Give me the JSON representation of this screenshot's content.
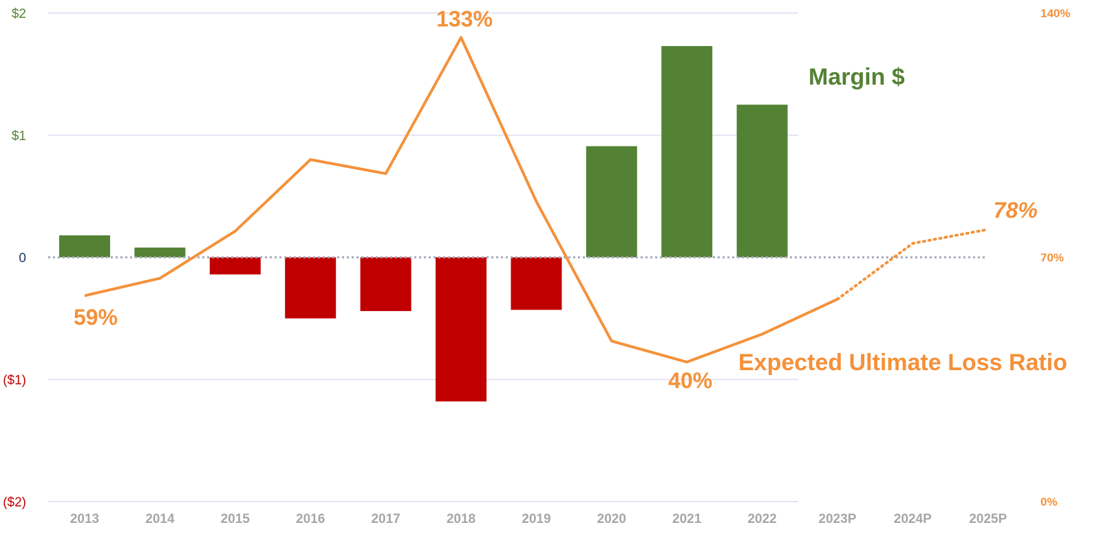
{
  "chart_data": {
    "type": "bar",
    "categories": [
      "2013",
      "2014",
      "2015",
      "2016",
      "2017",
      "2018",
      "2019",
      "2020",
      "2021",
      "2022",
      "2023P",
      "2024P",
      "2025P"
    ],
    "series": [
      {
        "name": "Margin $",
        "type": "bar",
        "axis": "left",
        "values": [
          0.18,
          0.08,
          -0.14,
          -0.5,
          -0.44,
          -1.18,
          -0.43,
          0.91,
          1.73,
          1.25,
          null,
          null,
          null
        ],
        "positive_color": "#548235",
        "negative_color": "#c00000"
      },
      {
        "name": "Expected Ultimate Loss Ratio",
        "type": "line",
        "axis": "right",
        "values": [
          59,
          64,
          77.5,
          98,
          94,
          133,
          86,
          46,
          40,
          48,
          58,
          74,
          78
        ],
        "projected_from_index": 10,
        "color": "#f4913a"
      }
    ],
    "left_axis": {
      "ylim": [
        -2,
        2
      ],
      "ticks": [
        {
          "value": 2,
          "label": "$2",
          "color": "#548235"
        },
        {
          "value": 1,
          "label": "$1",
          "color": "#548235"
        },
        {
          "value": 0,
          "label": "0",
          "color": "#1f3864"
        },
        {
          "value": -1,
          "label": "($1)",
          "color": "#c00000"
        },
        {
          "value": -2,
          "label": "($2)",
          "color": "#c00000"
        }
      ]
    },
    "right_axis": {
      "ylim": [
        0,
        140
      ],
      "ticks": [
        {
          "value": 140,
          "label": "140%"
        },
        {
          "value": 70,
          "label": "70%"
        },
        {
          "value": 0,
          "label": "0%"
        }
      ],
      "color": "#f4913a"
    },
    "annotations": [
      {
        "label": "133%",
        "index": 5,
        "value": 133
      },
      {
        "label": "59%",
        "index": 0,
        "value": 59
      },
      {
        "label": "40%",
        "index": 8,
        "value": 40
      },
      {
        "label": "78%",
        "index": 12,
        "value": 78,
        "italic": true
      }
    ],
    "series_labels": {
      "bar": "Margin $",
      "line": "Expected Ultimate Loss Ratio"
    },
    "grid": true,
    "gridline_color": "#d9dcf0"
  }
}
